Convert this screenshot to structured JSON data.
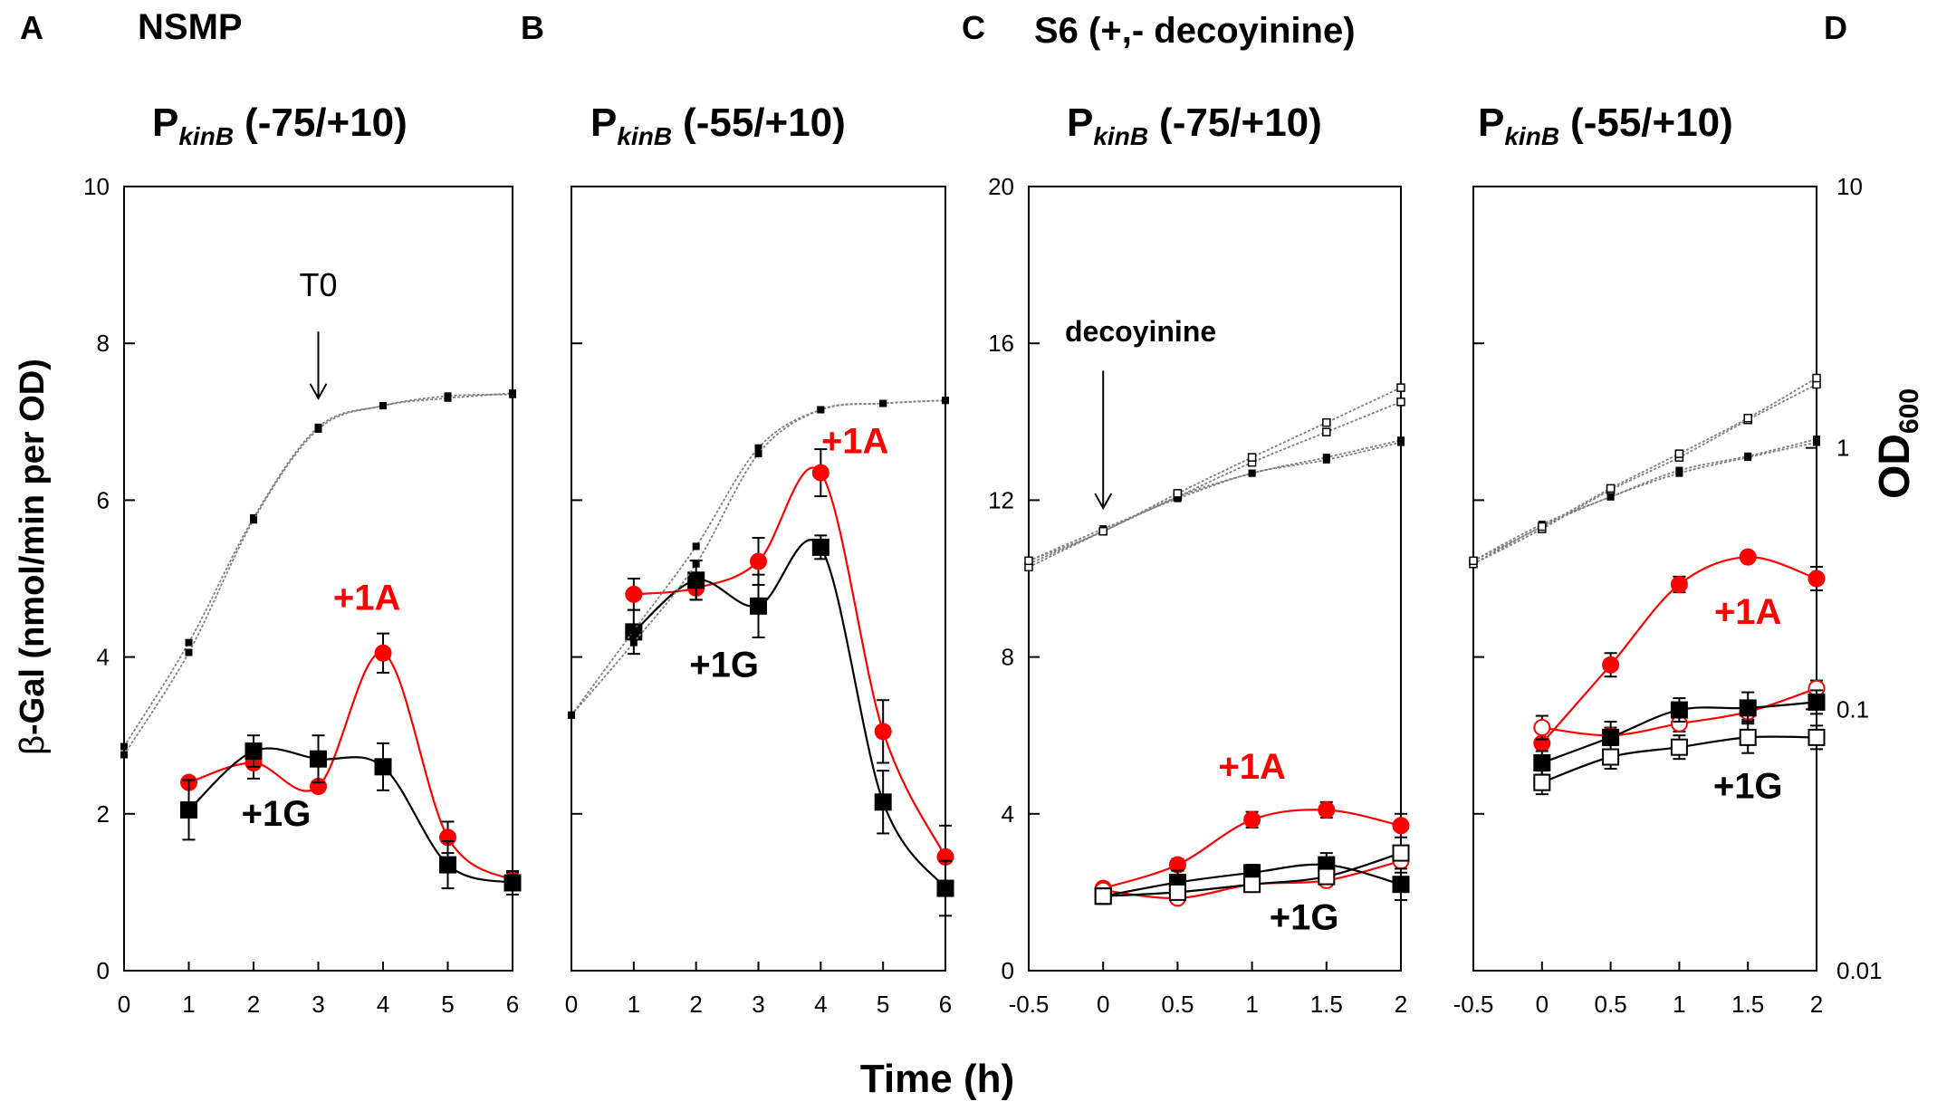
{
  "figure": {
    "panel_letters": [
      "A",
      "B",
      "C",
      "D"
    ],
    "group_titles": [
      "NSMP",
      "S6 (+,- decoyinine)"
    ],
    "promoter_prefix": "P",
    "promoter_subscript": "kinB",
    "y_left_label_symbol": "β",
    "y_left_label_rest": "-Gal (nmol/min per OD)",
    "y_right_label_main": "OD",
    "y_right_label_sub": "600",
    "x_label": "Time (h)",
    "colors": {
      "red": "#ff0000",
      "black": "#000000",
      "od": "#000000",
      "od_line": "#808080"
    }
  },
  "chart_data": [
    {
      "type": "line",
      "panel": "A",
      "promoter": "(-75/+10)",
      "xlim": [
        0,
        6
      ],
      "xticks": [
        0,
        1,
        2,
        3,
        4,
        5,
        6
      ],
      "xtick_labels": [
        "0",
        "1",
        "2",
        "3",
        "4",
        "5",
        "6"
      ],
      "ylim": [
        0,
        10
      ],
      "yticks": [
        0,
        2,
        4,
        6,
        8,
        10
      ],
      "ytick_labels": [
        "0",
        "2",
        "4",
        "6",
        "8",
        "10"
      ],
      "od_log_range": [
        0.01,
        10
      ],
      "series": [
        {
          "name": "+1A",
          "color": "red",
          "marker": "circle",
          "filled": true,
          "axis": "left",
          "x": [
            1,
            2,
            3,
            4,
            5,
            6
          ],
          "y": [
            2.4,
            2.65,
            2.35,
            4.05,
            1.7,
            1.15
          ],
          "err": [
            0,
            0.2,
            0,
            0.25,
            0.2,
            0.1
          ]
        },
        {
          "name": "+1G",
          "color": "black",
          "marker": "square",
          "filled": true,
          "axis": "left",
          "x": [
            1,
            2,
            3,
            4,
            5,
            6
          ],
          "y": [
            2.05,
            2.8,
            2.7,
            2.6,
            1.35,
            1.12
          ],
          "err": [
            0.38,
            0.2,
            0.3,
            0.3,
            0.3,
            0.15
          ]
        },
        {
          "name": "OD +1A",
          "marker": "dot",
          "filled": true,
          "axis": "right",
          "x": [
            0,
            1,
            2,
            3,
            4,
            5,
            6
          ],
          "y": [
            0.072,
            0.18,
            0.54,
            1.2,
            1.45,
            1.58,
            1.6
          ]
        },
        {
          "name": "OD +1G",
          "marker": "dot",
          "filled": true,
          "axis": "right",
          "x": [
            0,
            1,
            2,
            3,
            4,
            5,
            6
          ],
          "y": [
            0.067,
            0.165,
            0.53,
            1.18,
            1.45,
            1.55,
            1.62
          ]
        }
      ],
      "annotations": [
        {
          "text": "T0",
          "arrow": true,
          "x": 3,
          "y_text": 8.6,
          "y_tail": 8.15,
          "y_head": 7.3
        },
        {
          "text": "+1A",
          "color": "red",
          "x": 3.75,
          "y": 4.6
        },
        {
          "text": "+1G",
          "color": "black",
          "x": 2.35,
          "y": 1.85
        }
      ]
    },
    {
      "type": "line",
      "panel": "B",
      "promoter": "(-55/+10)",
      "xlim": [
        0,
        6
      ],
      "xticks": [
        0,
        1,
        2,
        3,
        4,
        5,
        6
      ],
      "xtick_labels": [
        "0",
        "1",
        "2",
        "3",
        "4",
        "5",
        "6"
      ],
      "ylim": [
        0,
        10
      ],
      "yticks": [
        0,
        2,
        4,
        6,
        8,
        10
      ],
      "ytick_labels": [],
      "od_log_range": [
        0.01,
        10
      ],
      "series": [
        {
          "name": "+1A",
          "color": "red",
          "marker": "circle",
          "filled": true,
          "axis": "left",
          "x": [
            1,
            2,
            3,
            4,
            5,
            6
          ],
          "y": [
            4.8,
            4.88,
            5.22,
            6.35,
            3.05,
            1.45
          ],
          "err": [
            0.2,
            0.15,
            0.3,
            0.3,
            0.4,
            0.4
          ]
        },
        {
          "name": "+1G",
          "color": "black",
          "marker": "square",
          "filled": true,
          "axis": "left",
          "x": [
            1,
            2,
            3,
            4,
            5,
            6
          ],
          "y": [
            4.32,
            4.98,
            4.65,
            5.4,
            2.15,
            1.05
          ],
          "err": [
            0.28,
            0.25,
            0.4,
            0.15,
            0.4,
            0.35
          ]
        },
        {
          "name": "OD +1A",
          "marker": "dot",
          "filled": true,
          "axis": "right",
          "x": [
            0,
            1,
            2,
            3,
            4,
            5,
            6
          ],
          "y": [
            0.095,
            0.2,
            0.42,
            1.0,
            1.4,
            1.48,
            1.52
          ]
        },
        {
          "name": "OD +1G",
          "marker": "dot",
          "filled": true,
          "axis": "right",
          "x": [
            0,
            1,
            2,
            3,
            4,
            5,
            6
          ],
          "y": [
            0.095,
            0.18,
            0.36,
            0.95,
            1.4,
            1.48,
            1.52
          ]
        }
      ],
      "annotations": [
        {
          "text": "+1A",
          "color": "red",
          "x": 4.55,
          "y": 6.6
        },
        {
          "text": "+1G",
          "color": "black",
          "x": 2.45,
          "y": 3.75
        }
      ]
    },
    {
      "type": "line",
      "panel": "C",
      "promoter": "(-75/+10)",
      "xlim": [
        -0.5,
        2
      ],
      "xticks": [
        -0.5,
        0,
        0.5,
        1,
        1.5,
        2
      ],
      "xtick_labels": [
        "-0.5",
        "0",
        "0.5",
        "1",
        "1.5",
        "2"
      ],
      "ylim": [
        0,
        20
      ],
      "yticks": [
        0,
        4,
        8,
        12,
        16,
        20
      ],
      "ytick_labels": [
        "0",
        "4",
        "8",
        "12",
        "16",
        "20"
      ],
      "od_log_range": [
        0.01,
        10
      ],
      "series": [
        {
          "name": "+1A",
          "color": "red",
          "marker": "circle",
          "filled": true,
          "axis": "left",
          "x": [
            0,
            0.5,
            1,
            1.5,
            2
          ],
          "y": [
            2.1,
            2.7,
            3.85,
            4.1,
            3.7
          ],
          "err": [
            0,
            0.15,
            0.2,
            0.2,
            0.3
          ]
        },
        {
          "name": "+1A + decoyinine",
          "color": "red",
          "marker": "circle",
          "filled": false,
          "axis": "left",
          "x": [
            0,
            0.5,
            1,
            1.5,
            2
          ],
          "y": [
            2.05,
            1.85,
            2.2,
            2.3,
            2.8
          ],
          "err": [
            0,
            0,
            0,
            0,
            0.3
          ]
        },
        {
          "name": "+1G",
          "color": "black",
          "marker": "square",
          "filled": true,
          "axis": "left",
          "x": [
            0,
            0.5,
            1,
            1.5,
            2
          ],
          "y": [
            1.9,
            2.25,
            2.5,
            2.7,
            2.2
          ],
          "err": [
            0.2,
            0.3,
            0.2,
            0.3,
            0.4
          ]
        },
        {
          "name": "+1G + decoyinine",
          "color": "black",
          "marker": "square",
          "filled": false,
          "axis": "left",
          "x": [
            0,
            0.5,
            1,
            1.5,
            2
          ],
          "y": [
            1.9,
            2.0,
            2.2,
            2.4,
            3.0
          ],
          "err": [
            0,
            0,
            0,
            0,
            0
          ]
        },
        {
          "name": "OD +1A",
          "marker": "dot",
          "filled": true,
          "axis": "right",
          "x": [
            -0.5,
            0,
            0.5,
            1,
            1.5,
            2
          ],
          "y": [
            0.36,
            0.48,
            0.65,
            0.8,
            0.92,
            1.07
          ]
        },
        {
          "name": "OD +1A + decoyinine",
          "marker": "dot",
          "filled": false,
          "axis": "right",
          "x": [
            -0.5,
            0,
            0.5,
            1,
            1.5,
            2
          ],
          "y": [
            0.35,
            0.48,
            0.65,
            0.88,
            1.15,
            1.5
          ]
        },
        {
          "name": "OD +1G",
          "marker": "dot",
          "filled": true,
          "axis": "right",
          "x": [
            -0.5,
            0,
            0.5,
            1,
            1.5,
            2
          ],
          "y": [
            0.37,
            0.49,
            0.64,
            0.8,
            0.9,
            1.05
          ]
        },
        {
          "name": "OD +1G + decoyinine",
          "marker": "dot",
          "filled": false,
          "axis": "right",
          "x": [
            -0.5,
            0,
            0.5,
            1,
            1.5,
            2
          ],
          "y": [
            0.37,
            0.48,
            0.67,
            0.92,
            1.25,
            1.7
          ]
        }
      ],
      "annotations": [
        {
          "text": "decoyinine",
          "arrow": true,
          "x": 0,
          "y_text": 16.05,
          "y_tail": 15.3,
          "y_head": 11.8
        },
        {
          "text": "+1A",
          "color": "red",
          "x": 1.0,
          "y": 4.9
        },
        {
          "text": "+1G",
          "color": "black",
          "x": 1.35,
          "y": 1.05
        }
      ]
    },
    {
      "type": "line",
      "panel": "D",
      "promoter": "(-55/+10)",
      "xlim": [
        -0.5,
        2
      ],
      "xticks": [
        -0.5,
        0,
        0.5,
        1,
        1.5,
        2
      ],
      "xtick_labels": [
        "-0.5",
        "0",
        "0.5",
        "1",
        "1.5",
        "2"
      ],
      "ylim": [
        0,
        20
      ],
      "yticks": [
        0,
        4,
        8,
        12,
        16,
        20
      ],
      "ytick_labels": [],
      "od_log_range": [
        0.01,
        10
      ],
      "right_ticks": [
        0.01,
        0.1,
        1,
        10
      ],
      "right_tick_labels": [
        "0.01",
        "0.1",
        "1",
        "10"
      ],
      "series": [
        {
          "name": "+1A",
          "color": "red",
          "marker": "circle",
          "filled": true,
          "axis": "left",
          "x": [
            0,
            0.5,
            1,
            1.5,
            2
          ],
          "y": [
            5.8,
            7.8,
            9.85,
            10.55,
            10.0
          ],
          "err": [
            0,
            0.3,
            0.2,
            0,
            0.3
          ]
        },
        {
          "name": "+1A + decoyinine",
          "color": "red",
          "marker": "circle",
          "filled": false,
          "axis": "left",
          "x": [
            0,
            0.5,
            1,
            1.5,
            2
          ],
          "y": [
            6.2,
            6.0,
            6.3,
            6.6,
            7.2
          ],
          "err": [
            0.3,
            0.2,
            0.2,
            0.2,
            0.2
          ]
        },
        {
          "name": "+1G",
          "color": "black",
          "marker": "square",
          "filled": true,
          "axis": "left",
          "x": [
            0,
            0.5,
            1,
            1.5,
            2
          ],
          "y": [
            5.3,
            5.95,
            6.65,
            6.7,
            6.85
          ],
          "err": [
            0.3,
            0.4,
            0.3,
            0.4,
            0.3
          ]
        },
        {
          "name": "+1G + decoyinine",
          "color": "black",
          "marker": "square",
          "filled": false,
          "axis": "left",
          "x": [
            0,
            0.5,
            1,
            1.5,
            2
          ],
          "y": [
            4.8,
            5.45,
            5.7,
            5.95,
            5.95
          ],
          "err": [
            0.3,
            0.3,
            0.3,
            0.4,
            0.3
          ]
        },
        {
          "name": "OD +1A",
          "marker": "dot",
          "filled": true,
          "axis": "right",
          "x": [
            -0.5,
            0,
            0.5,
            1,
            1.5,
            2
          ],
          "y": [
            0.36,
            0.5,
            0.65,
            0.8,
            0.92,
            1.05
          ]
        },
        {
          "name": "OD +1A + decoyinine",
          "marker": "dot",
          "filled": false,
          "axis": "right",
          "x": [
            -0.5,
            0,
            0.5,
            1,
            1.5,
            2
          ],
          "y": [
            0.36,
            0.49,
            0.69,
            0.92,
            1.28,
            1.75
          ]
        },
        {
          "name": "OD +1G",
          "marker": "dot",
          "filled": true,
          "axis": "right",
          "x": [
            -0.5,
            0,
            0.5,
            1,
            1.5,
            2
          ],
          "y": [
            0.37,
            0.51,
            0.65,
            0.82,
            0.93,
            1.08
          ]
        },
        {
          "name": "OD +1G + decoyinine",
          "marker": "dot",
          "filled": false,
          "axis": "right",
          "x": [
            -0.5,
            0,
            0.5,
            1,
            1.5,
            2
          ],
          "y": [
            0.37,
            0.5,
            0.7,
            0.95,
            1.3,
            1.85
          ]
        }
      ],
      "annotations": [
        {
          "text": "+1A",
          "color": "red",
          "x": 1.5,
          "y": 8.85
        },
        {
          "text": "+1G",
          "color": "black",
          "x": 1.5,
          "y": 4.4
        }
      ]
    }
  ]
}
